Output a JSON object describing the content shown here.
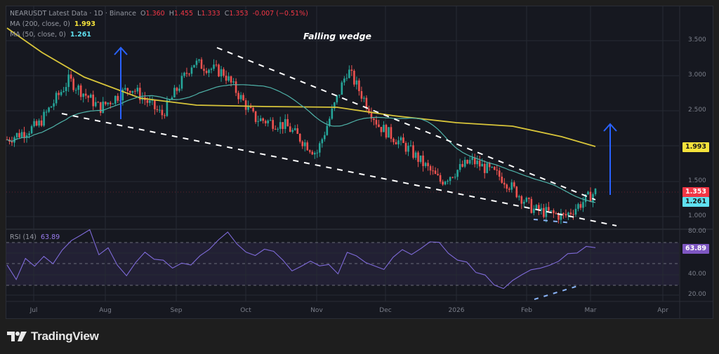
{
  "header": {
    "symbol_line": "NEARUSDT Latest Data · 1D · Binance",
    "ohlc": {
      "open_label": "O",
      "open": "1.360",
      "high_label": "H",
      "high": "1.455",
      "low_label": "L",
      "low": "1.333",
      "close_label": "C",
      "close": "1.353",
      "change": "-0.007 (−0.51%)"
    },
    "ma200_label": "MA (200, close, 0)",
    "ma200_value": "1.993",
    "ma50_label": "MA (50, close, 0)",
    "ma50_value": "1.261"
  },
  "annotation": "Falling wedge",
  "rsi": {
    "label": "RSI (14)",
    "value": "63.89"
  },
  "price_axis": [
    "3.500",
    "3.000",
    "2.500",
    "1.500",
    "1.000"
  ],
  "rsi_axis": [
    "80.00",
    "40.00",
    "20.00"
  ],
  "price_tags": {
    "ma200": "1.993",
    "last": "1.353",
    "ma50": "1.261"
  },
  "time_axis": [
    "Jul",
    "Aug",
    "Sep",
    "Oct",
    "Nov",
    "Dec",
    "2026",
    "Feb",
    "Mar",
    "Apr"
  ],
  "brand": "TradingView",
  "colors": {
    "up": "#26a69a",
    "down": "#ef5350",
    "ma200": "#e0c83a",
    "ma50": "#4fb3a9",
    "rsi": "#7e6ad8",
    "arrow": "#2962ff",
    "background": "#161820"
  },
  "chart_data": {
    "type": "candlestick",
    "title": "NEARUSDT · 1D · Binance — Falling wedge",
    "x_ticks": [
      "Jul",
      "Aug",
      "Sep",
      "Oct",
      "Nov",
      "Dec",
      "2026",
      "Feb",
      "Mar",
      "Apr"
    ],
    "y_ticks": [
      1.0,
      1.5,
      2.5,
      3.0,
      3.5
    ],
    "ylim": [
      0.85,
      3.75
    ],
    "last_ohlc": {
      "open": 1.36,
      "high": 1.455,
      "low": 1.333,
      "close": 1.353,
      "change": -0.007,
      "change_pct": -0.51
    },
    "approx_close_series": [
      {
        "date": "Jul-start",
        "close": 2.1
      },
      {
        "date": "Jul-mid",
        "close": 2.3
      },
      {
        "date": "Jul-late",
        "close": 2.95
      },
      {
        "date": "Aug-start",
        "close": 2.55
      },
      {
        "date": "Aug-mid",
        "close": 2.85
      },
      {
        "date": "Sep-start",
        "close": 2.45
      },
      {
        "date": "Sep-late",
        "close": 3.2
      },
      {
        "date": "Oct-start",
        "close": 3.05
      },
      {
        "date": "Oct-10",
        "close": 2.4
      },
      {
        "date": "Oct-late",
        "close": 2.3
      },
      {
        "date": "Nov-start",
        "close": 1.9
      },
      {
        "date": "Nov-10",
        "close": 3.1
      },
      {
        "date": "Nov-late",
        "close": 2.3
      },
      {
        "date": "Dec-start",
        "close": 1.95
      },
      {
        "date": "Dec-late",
        "close": 1.5
      },
      {
        "date": "Jan-mid",
        "close": 1.8
      },
      {
        "date": "Jan-late",
        "close": 1.55
      },
      {
        "date": "Feb-start",
        "close": 1.1
      },
      {
        "date": "Feb-late",
        "close": 1.0
      },
      {
        "date": "Mar-start",
        "close": 1.353
      }
    ],
    "series": [
      {
        "name": "MA (200, close, 0)",
        "last": 1.993
      },
      {
        "name": "MA (50, close, 0)",
        "last": 1.261
      }
    ],
    "indicator": {
      "name": "RSI (14)",
      "last": 63.89,
      "levels": [
        70,
        50,
        30
      ],
      "y_ticks": [
        20,
        40,
        80
      ]
    },
    "annotations": [
      "Falling wedge (two descending dashed trendlines)",
      "Blue up-arrow near Aug",
      "Blue up-arrow projecting breakout after Mar",
      "Rising dashed RSI support line in Feb (bullish divergence)"
    ]
  }
}
